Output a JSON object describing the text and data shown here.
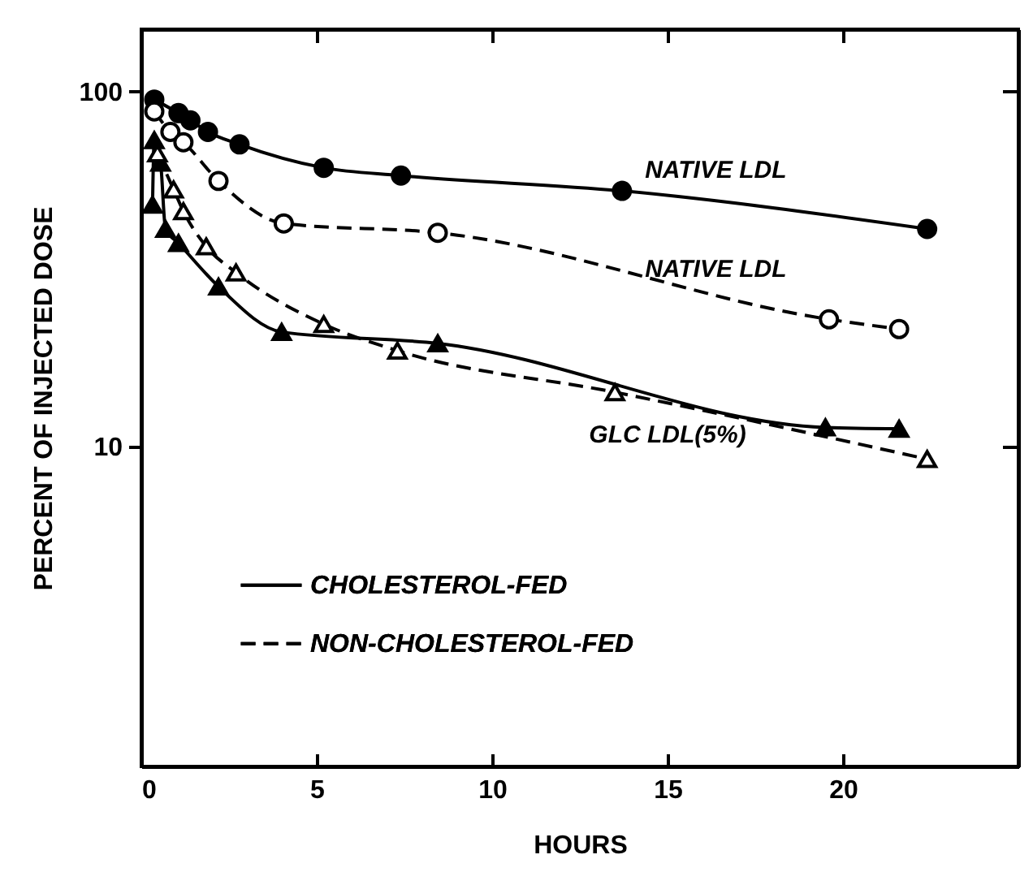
{
  "chart_data": {
    "type": "line",
    "xlabel": "HOURS",
    "ylabel": "PERCENT OF INJECTED DOSE",
    "log": "y",
    "xlim": [
      0,
      25
    ],
    "xticks": [
      0,
      5,
      10,
      15,
      20
    ],
    "ylim": [
      1.25,
      150
    ],
    "yticks": [
      10,
      100
    ],
    "grid": false,
    "legend": "left",
    "series": [
      {
        "name": "CHOLESTEROL-FED",
        "color": "#000000",
        "marker": "circle",
        "line_style": "solid",
        "x": [
          0.37,
          1.06,
          1.4,
          1.9,
          2.8,
          5.2,
          7.4,
          13.7,
          22.4
        ],
        "values": [
          95,
          87,
          83,
          77,
          71,
          61,
          58,
          52.5,
          41
        ]
      },
      {
        "name": "NON-CHOLESTEROL-FED",
        "color": "#000000",
        "marker": "circle",
        "line_style": "dashed",
        "x": [
          0.37,
          0.83,
          1.2,
          2.2,
          4.06,
          8.45,
          19.6,
          21.6
        ],
        "values": [
          88,
          77,
          72,
          56,
          42.5,
          40,
          22.8,
          21.4
        ]
      },
      {
        "color": "#000000",
        "marker": "triangle",
        "line_style": "solid",
        "x": [
          0.32,
          0.37,
          0.55,
          0.69,
          1.06,
          2.2,
          4.0,
          8.45,
          19.5,
          21.6
        ],
        "values": [
          48,
          73,
          63,
          41,
          37.4,
          28.2,
          21,
          19.5,
          11.3,
          11.2
        ]
      },
      {
        "color": "#000000",
        "marker": "triangle",
        "line_style": "dashed",
        "x": [
          0.46,
          0.92,
          1.2,
          1.85,
          2.7,
          5.2,
          7.3,
          13.5,
          22.4
        ],
        "values": [
          67,
          53,
          46,
          36.6,
          30.9,
          22.1,
          18.6,
          14.2,
          9.2
        ]
      }
    ],
    "annotations": [
      "NATIVE LDL",
      "NATIVE LDL",
      "GLC LDL(5%)"
    ]
  }
}
